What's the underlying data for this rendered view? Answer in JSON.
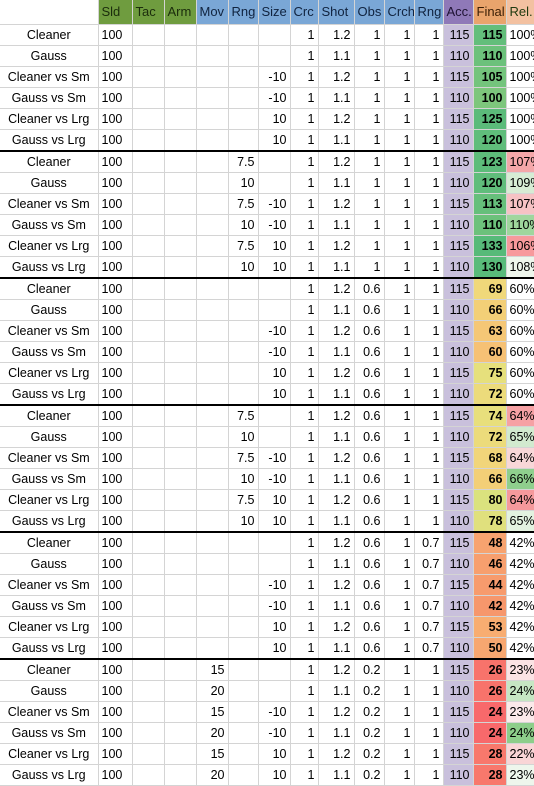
{
  "columns": {
    "name": "",
    "sld": "Sld",
    "tac": "Tac",
    "arm": "Arm",
    "mov": "Mov",
    "rng": "Rng",
    "size": "Size",
    "crc": "Crc",
    "shot": "Shot",
    "obs": "Obs",
    "crch": "Crch",
    "rng2": "Rng",
    "acc": "Acc.",
    "final": "Final",
    "rel": "Rel."
  },
  "rows": [
    {
      "name": "Cleaner",
      "sld": "100",
      "tac": "",
      "arm": "",
      "mov": "",
      "rng": "",
      "size": "",
      "crc": "1",
      "shot": "1.2",
      "obs": "1",
      "crch": "1",
      "rng2": "1",
      "acc": "115",
      "final": "115",
      "rel": "100%",
      "fcolor": "#63be7b",
      "rcolor": "#ffffff"
    },
    {
      "name": "Gauss",
      "sld": "100",
      "tac": "",
      "arm": "",
      "mov": "",
      "rng": "",
      "size": "",
      "crc": "1",
      "shot": "1.1",
      "obs": "1",
      "crch": "1",
      "rng2": "1",
      "acc": "110",
      "final": "110",
      "rel": "100%",
      "fcolor": "#6cc17b",
      "rcolor": "#ffffff"
    },
    {
      "name": "Cleaner vs Sm",
      "sld": "100",
      "tac": "",
      "arm": "",
      "mov": "",
      "rng": "",
      "size": "-10",
      "crc": "1",
      "shot": "1.2",
      "obs": "1",
      "crch": "1",
      "rng2": "1",
      "acc": "115",
      "final": "105",
      "rel": "100%",
      "fcolor": "#74c47c",
      "rcolor": "#ffffff"
    },
    {
      "name": "Gauss vs Sm",
      "sld": "100",
      "tac": "",
      "arm": "",
      "mov": "",
      "rng": "",
      "size": "-10",
      "crc": "1",
      "shot": "1.1",
      "obs": "1",
      "crch": "1",
      "rng2": "1",
      "acc": "110",
      "final": "100",
      "rel": "100%",
      "fcolor": "#7dc67c",
      "rcolor": "#ffffff"
    },
    {
      "name": "Cleaner vs Lrg",
      "sld": "100",
      "tac": "",
      "arm": "",
      "mov": "",
      "rng": "",
      "size": "10",
      "crc": "1",
      "shot": "1.2",
      "obs": "1",
      "crch": "1",
      "rng2": "1",
      "acc": "115",
      "final": "125",
      "rel": "100%",
      "fcolor": "#5bbb7a",
      "rcolor": "#ffffff"
    },
    {
      "name": "Gauss vs Lrg",
      "sld": "100",
      "tac": "",
      "arm": "",
      "mov": "",
      "rng": "",
      "size": "10",
      "crc": "1",
      "shot": "1.1",
      "obs": "1",
      "crch": "1",
      "rng2": "1",
      "acc": "110",
      "final": "120",
      "rel": "100%",
      "fcolor": "#60bd7b",
      "rcolor": "#ffffff"
    },
    {
      "name": "Cleaner",
      "sld": "100",
      "tac": "",
      "arm": "",
      "mov": "",
      "rng": "7.5",
      "size": "",
      "crc": "1",
      "shot": "1.2",
      "obs": "1",
      "crch": "1",
      "rng2": "1",
      "acc": "115",
      "final": "123",
      "rel": "107%",
      "fcolor": "#5dbc7a",
      "rcolor": "#f4a7a9"
    },
    {
      "name": "Gauss",
      "sld": "100",
      "tac": "",
      "arm": "",
      "mov": "",
      "rng": "10",
      "size": "",
      "crc": "1",
      "shot": "1.1",
      "obs": "1",
      "crch": "1",
      "rng2": "1",
      "acc": "110",
      "final": "120",
      "rel": "109%",
      "fcolor": "#60bd7b",
      "rcolor": "#d7ecd4"
    },
    {
      "name": "Cleaner vs Sm",
      "sld": "100",
      "tac": "",
      "arm": "",
      "mov": "",
      "rng": "7.5",
      "size": "-10",
      "crc": "1",
      "shot": "1.2",
      "obs": "1",
      "crch": "1",
      "rng2": "1",
      "acc": "115",
      "final": "113",
      "rel": "107%",
      "fcolor": "#66bf7b",
      "rcolor": "#f6c2c4"
    },
    {
      "name": "Gauss vs Sm",
      "sld": "100",
      "tac": "",
      "arm": "",
      "mov": "",
      "rng": "10",
      "size": "-10",
      "crc": "1",
      "shot": "1.1",
      "obs": "1",
      "crch": "1",
      "rng2": "1",
      "acc": "110",
      "final": "110",
      "rel": "110%",
      "fcolor": "#6cc17b",
      "rcolor": "#9fd69d"
    },
    {
      "name": "Cleaner vs Lrg",
      "sld": "100",
      "tac": "",
      "arm": "",
      "mov": "",
      "rng": "7.5",
      "size": "10",
      "crc": "1",
      "shot": "1.2",
      "obs": "1",
      "crch": "1",
      "rng2": "1",
      "acc": "115",
      "final": "133",
      "rel": "106%",
      "fcolor": "#57ba79",
      "rcolor": "#f7999c"
    },
    {
      "name": "Gauss vs Lrg",
      "sld": "100",
      "tac": "",
      "arm": "",
      "mov": "",
      "rng": "10",
      "size": "10",
      "crc": "1",
      "shot": "1.1",
      "obs": "1",
      "crch": "1",
      "rng2": "1",
      "acc": "110",
      "final": "130",
      "rel": "108%",
      "fcolor": "#59bb7a",
      "rcolor": "#eef6ec"
    },
    {
      "name": "Cleaner",
      "sld": "100",
      "tac": "",
      "arm": "",
      "mov": "",
      "rng": "",
      "size": "",
      "crc": "1",
      "shot": "1.2",
      "obs": "0.6",
      "crch": "1",
      "rng2": "1",
      "acc": "115",
      "final": "69",
      "rel": "60%",
      "fcolor": "#f0d87a",
      "rcolor": "#ffffff"
    },
    {
      "name": "Gauss",
      "sld": "100",
      "tac": "",
      "arm": "",
      "mov": "",
      "rng": "",
      "size": "",
      "crc": "1",
      "shot": "1.1",
      "obs": "0.6",
      "crch": "1",
      "rng2": "1",
      "acc": "110",
      "final": "66",
      "rel": "60%",
      "fcolor": "#f3cf77",
      "rcolor": "#ffffff"
    },
    {
      "name": "Cleaner vs Sm",
      "sld": "100",
      "tac": "",
      "arm": "",
      "mov": "",
      "rng": "",
      "size": "-10",
      "crc": "1",
      "shot": "1.2",
      "obs": "0.6",
      "crch": "1",
      "rng2": "1",
      "acc": "115",
      "final": "63",
      "rel": "60%",
      "fcolor": "#f5c776",
      "rcolor": "#ffffff"
    },
    {
      "name": "Gauss vs Sm",
      "sld": "100",
      "tac": "",
      "arm": "",
      "mov": "",
      "rng": "",
      "size": "-10",
      "crc": "1",
      "shot": "1.1",
      "obs": "0.6",
      "crch": "1",
      "rng2": "1",
      "acc": "110",
      "final": "60",
      "rel": "60%",
      "fcolor": "#f6c175",
      "rcolor": "#ffffff"
    },
    {
      "name": "Cleaner vs Lrg",
      "sld": "100",
      "tac": "",
      "arm": "",
      "mov": "",
      "rng": "",
      "size": "10",
      "crc": "1",
      "shot": "1.2",
      "obs": "0.6",
      "crch": "1",
      "rng2": "1",
      "acc": "115",
      "final": "75",
      "rel": "60%",
      "fcolor": "#e6e07c",
      "rcolor": "#ffffff"
    },
    {
      "name": "Gauss vs Lrg",
      "sld": "100",
      "tac": "",
      "arm": "",
      "mov": "",
      "rng": "",
      "size": "10",
      "crc": "1",
      "shot": "1.1",
      "obs": "0.6",
      "crch": "1",
      "rng2": "1",
      "acc": "110",
      "final": "72",
      "rel": "60%",
      "fcolor": "#ecdb7b",
      "rcolor": "#ffffff"
    },
    {
      "name": "Cleaner",
      "sld": "100",
      "tac": "",
      "arm": "",
      "mov": "",
      "rng": "7.5",
      "size": "",
      "crc": "1",
      "shot": "1.2",
      "obs": "0.6",
      "crch": "1",
      "rng2": "1",
      "acc": "115",
      "final": "74",
      "rel": "64%",
      "fcolor": "#e8df7c",
      "rcolor": "#f6a1a4"
    },
    {
      "name": "Gauss",
      "sld": "100",
      "tac": "",
      "arm": "",
      "mov": "",
      "rng": "10",
      "size": "",
      "crc": "1",
      "shot": "1.1",
      "obs": "0.6",
      "crch": "1",
      "rng2": "1",
      "acc": "110",
      "final": "72",
      "rel": "65%",
      "fcolor": "#ecdb7b",
      "rcolor": "#d2eacf"
    },
    {
      "name": "Cleaner vs Sm",
      "sld": "100",
      "tac": "",
      "arm": "",
      "mov": "",
      "rng": "7.5",
      "size": "-10",
      "crc": "1",
      "shot": "1.2",
      "obs": "0.6",
      "crch": "1",
      "rng2": "1",
      "acc": "115",
      "final": "68",
      "rel": "64%",
      "fcolor": "#f1d57a",
      "rcolor": "#f8d7d8"
    },
    {
      "name": "Gauss vs Sm",
      "sld": "100",
      "tac": "",
      "arm": "",
      "mov": "",
      "rng": "10",
      "size": "-10",
      "crc": "1",
      "shot": "1.1",
      "obs": "0.6",
      "crch": "1",
      "rng2": "1",
      "acc": "110",
      "final": "66",
      "rel": "66%",
      "fcolor": "#f3cf77",
      "rcolor": "#8fcf8d"
    },
    {
      "name": "Cleaner vs Lrg",
      "sld": "100",
      "tac": "",
      "arm": "",
      "mov": "",
      "rng": "7.5",
      "size": "10",
      "crc": "1",
      "shot": "1.2",
      "obs": "0.6",
      "crch": "1",
      "rng2": "1",
      "acc": "115",
      "final": "80",
      "rel": "64%",
      "fcolor": "#dae27e",
      "rcolor": "#f5999c"
    },
    {
      "name": "Gauss vs Lrg",
      "sld": "100",
      "tac": "",
      "arm": "",
      "mov": "",
      "rng": "10",
      "size": "10",
      "crc": "1",
      "shot": "1.1",
      "obs": "0.6",
      "crch": "1",
      "rng2": "1",
      "acc": "110",
      "final": "78",
      "rel": "65%",
      "fcolor": "#e0e07d",
      "rcolor": "#e3f2e0"
    },
    {
      "name": "Cleaner",
      "sld": "100",
      "tac": "",
      "arm": "",
      "mov": "",
      "rng": "",
      "size": "",
      "crc": "1",
      "shot": "1.2",
      "obs": "0.6",
      "crch": "1",
      "rng2": "0.7",
      "acc": "115",
      "final": "48",
      "rel": "42%",
      "fcolor": "#f7a36f",
      "rcolor": "#ffffff"
    },
    {
      "name": "Gauss",
      "sld": "100",
      "tac": "",
      "arm": "",
      "mov": "",
      "rng": "",
      "size": "",
      "crc": "1",
      "shot": "1.1",
      "obs": "0.6",
      "crch": "1",
      "rng2": "0.7",
      "acc": "110",
      "final": "46",
      "rel": "42%",
      "fcolor": "#f79f6e",
      "rcolor": "#ffffff"
    },
    {
      "name": "Cleaner vs Sm",
      "sld": "100",
      "tac": "",
      "arm": "",
      "mov": "",
      "rng": "",
      "size": "-10",
      "crc": "1",
      "shot": "1.2",
      "obs": "0.6",
      "crch": "1",
      "rng2": "0.7",
      "acc": "115",
      "final": "44",
      "rel": "42%",
      "fcolor": "#f79b6d",
      "rcolor": "#ffffff"
    },
    {
      "name": "Gauss vs Sm",
      "sld": "100",
      "tac": "",
      "arm": "",
      "mov": "",
      "rng": "",
      "size": "-10",
      "crc": "1",
      "shot": "1.1",
      "obs": "0.6",
      "crch": "1",
      "rng2": "0.7",
      "acc": "110",
      "final": "42",
      "rel": "42%",
      "fcolor": "#f6976c",
      "rcolor": "#ffffff"
    },
    {
      "name": "Cleaner vs Lrg",
      "sld": "100",
      "tac": "",
      "arm": "",
      "mov": "",
      "rng": "",
      "size": "10",
      "crc": "1",
      "shot": "1.2",
      "obs": "0.6",
      "crch": "1",
      "rng2": "0.7",
      "acc": "115",
      "final": "53",
      "rel": "42%",
      "fcolor": "#f8ad71",
      "rcolor": "#ffffff"
    },
    {
      "name": "Gauss vs Lrg",
      "sld": "100",
      "tac": "",
      "arm": "",
      "mov": "",
      "rng": "",
      "size": "10",
      "crc": "1",
      "shot": "1.1",
      "obs": "0.6",
      "crch": "1",
      "rng2": "0.7",
      "acc": "110",
      "final": "50",
      "rel": "42%",
      "fcolor": "#f7a770",
      "rcolor": "#ffffff"
    },
    {
      "name": "Cleaner",
      "sld": "100",
      "tac": "",
      "arm": "",
      "mov": "15",
      "rng": "",
      "size": "",
      "crc": "1",
      "shot": "1.2",
      "obs": "0.2",
      "crch": "1",
      "rng2": "1",
      "acc": "115",
      "final": "26",
      "rel": "23%",
      "fcolor": "#f8736b",
      "rcolor": "#fbe3e4"
    },
    {
      "name": "Gauss",
      "sld": "100",
      "tac": "",
      "arm": "",
      "mov": "20",
      "rng": "",
      "size": "",
      "crc": "1",
      "shot": "1.1",
      "obs": "0.2",
      "crch": "1",
      "rng2": "1",
      "acc": "110",
      "final": "26",
      "rel": "24%",
      "fcolor": "#f8736b",
      "rcolor": "#c6e6c3"
    },
    {
      "name": "Cleaner vs Sm",
      "sld": "100",
      "tac": "",
      "arm": "",
      "mov": "15",
      "rng": "",
      "size": "-10",
      "crc": "1",
      "shot": "1.2",
      "obs": "0.2",
      "crch": "1",
      "rng2": "1",
      "acc": "115",
      "final": "24",
      "rel": "23%",
      "fcolor": "#f8696b",
      "rcolor": "#fbe9ea"
    },
    {
      "name": "Gauss vs Sm",
      "sld": "100",
      "tac": "",
      "arm": "",
      "mov": "20",
      "rng": "",
      "size": "-10",
      "crc": "1",
      "shot": "1.1",
      "obs": "0.2",
      "crch": "1",
      "rng2": "1",
      "acc": "110",
      "final": "24",
      "rel": "24%",
      "fcolor": "#f8696b",
      "rcolor": "#8dce8a"
    },
    {
      "name": "Cleaner vs Lrg",
      "sld": "100",
      "tac": "",
      "arm": "",
      "mov": "15",
      "rng": "",
      "size": "10",
      "crc": "1",
      "shot": "1.2",
      "obs": "0.2",
      "crch": "1",
      "rng2": "1",
      "acc": "115",
      "final": "28",
      "rel": "22%",
      "fcolor": "#f8786c",
      "rcolor": "#f9d5d6"
    },
    {
      "name": "Gauss vs Lrg",
      "sld": "100",
      "tac": "",
      "arm": "",
      "mov": "20",
      "rng": "",
      "size": "10",
      "crc": "1",
      "shot": "1.1",
      "obs": "0.2",
      "crch": "1",
      "rng2": "1",
      "acc": "110",
      "final": "28",
      "rel": "23%",
      "fcolor": "#f8786c",
      "rcolor": "#eef6ec"
    }
  ]
}
